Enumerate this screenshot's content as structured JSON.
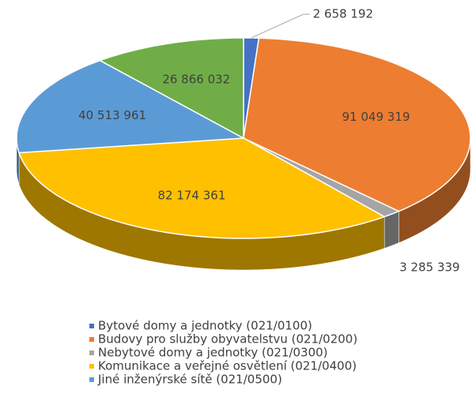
{
  "chart_data": {
    "type": "pie3d",
    "categories": [
      "Bytové domy a jednotky (021/0100)",
      "Budovy pro služby obyvatelstvu (021/0200)",
      "Nebytové domy a jednotky (021/0300)",
      "Komunikace a veřejné osvětlení (021/0400)",
      "Jiné inženýrské sítě (021/0500)",
      null
    ],
    "values": [
      2658192,
      91049319,
      3285339,
      82174361,
      40513961,
      26866032
    ],
    "value_labels": [
      "2 658 192",
      "91 049 319",
      "3 285 339",
      "82 174 361",
      "40 513 961",
      "26 866 032"
    ],
    "colors": [
      "#4472c4",
      "#ed7d31",
      "#a5a5a5",
      "#ffc000",
      "#5b9bd5",
      "#70ad47"
    ],
    "legend": "bottom"
  }
}
